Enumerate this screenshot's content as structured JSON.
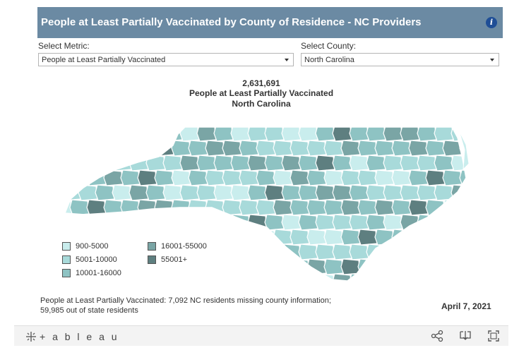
{
  "header": {
    "title": "People at Least Partially Vaccinated by County of Residence - NC Providers",
    "info_icon": "info-icon"
  },
  "filters": {
    "metric": {
      "label": "Select Metric:",
      "value": "People at Least Partially Vaccinated"
    },
    "county": {
      "label": "Select County:",
      "value": "North Carolina"
    }
  },
  "summary": {
    "total": "2,631,691",
    "metric": "People at Least Partially Vaccinated",
    "county": "North Carolina"
  },
  "legend": [
    {
      "label": "900-5000",
      "color": "#c9eded"
    },
    {
      "label": "5001-10000",
      "color": "#a8dada"
    },
    {
      "label": "10001-16000",
      "color": "#8ec3c3"
    },
    {
      "label": "16001-55000",
      "color": "#7aa5a5"
    },
    {
      "label": "55001+",
      "color": "#5e7f80"
    }
  ],
  "footnote": {
    "line1": "People at Least Partially Vaccinated: 7,092 NC residents missing county information;",
    "line2": "59,985 out of state residents"
  },
  "date": "April 7, 2021",
  "toolbar": {
    "logo_text": "+ a b l e a u",
    "icons": [
      "share-icon",
      "download-icon",
      "fullscreen-icon"
    ]
  }
}
